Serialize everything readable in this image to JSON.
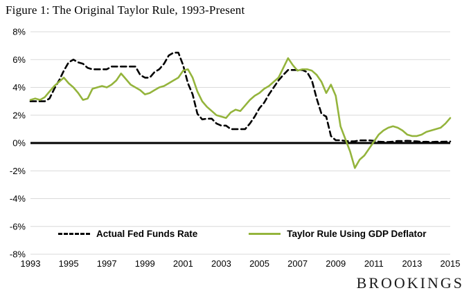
{
  "title": "Figure 1: The Original Taylor Rule, 1993-Present",
  "branding": {
    "logo_text": "BROOKINGS"
  },
  "legend": [
    {
      "label": "Actual Fed Funds Rate",
      "color": "#000000",
      "style": "dashed"
    },
    {
      "label": "Taylor Rule Using GDP Deflator",
      "color": "#94b43c",
      "style": "solid"
    }
  ],
  "chart_data": {
    "type": "line",
    "title": "Figure 1: The Original Taylor Rule, 1993-Present",
    "xlabel": "",
    "ylabel": "",
    "xlim": [
      1993,
      2015
    ],
    "ylim": [
      -8,
      8
    ],
    "grid": "horizontal",
    "zero_line": true,
    "legend_position": "bottom-inside",
    "yticks": [
      8,
      6,
      4,
      2,
      0,
      -2,
      -4,
      -6,
      -8
    ],
    "ytick_labels": [
      "8%",
      "6%",
      "4%",
      "2%",
      "0%",
      "-2%",
      "-4%",
      "-6%",
      "-8%"
    ],
    "xticks": [
      1993,
      1995,
      1997,
      1999,
      2001,
      2003,
      2005,
      2007,
      2009,
      2011,
      2013,
      2015
    ],
    "x": [
      1993.0,
      1993.25,
      1993.5,
      1993.75,
      1994.0,
      1994.25,
      1994.5,
      1994.75,
      1995.0,
      1995.25,
      1995.5,
      1995.75,
      1996.0,
      1996.25,
      1996.5,
      1996.75,
      1997.0,
      1997.25,
      1997.5,
      1997.75,
      1998.0,
      1998.25,
      1998.5,
      1998.75,
      1999.0,
      1999.25,
      1999.5,
      1999.75,
      2000.0,
      2000.25,
      2000.5,
      2000.75,
      2001.0,
      2001.25,
      2001.5,
      2001.75,
      2002.0,
      2002.25,
      2002.5,
      2002.75,
      2003.0,
      2003.25,
      2003.5,
      2003.75,
      2004.0,
      2004.25,
      2004.5,
      2004.75,
      2005.0,
      2005.25,
      2005.5,
      2005.75,
      2006.0,
      2006.25,
      2006.5,
      2006.75,
      2007.0,
      2007.25,
      2007.5,
      2007.75,
      2008.0,
      2008.25,
      2008.5,
      2008.75,
      2009.0,
      2009.25,
      2009.5,
      2009.75,
      2010.0,
      2010.25,
      2010.5,
      2010.75,
      2011.0,
      2011.25,
      2011.5,
      2011.75,
      2012.0,
      2012.25,
      2012.5,
      2012.75,
      2013.0,
      2013.25,
      2013.5,
      2013.75,
      2014.0,
      2014.25,
      2014.5,
      2014.75,
      2015.0
    ],
    "series": [
      {
        "name": "Actual Fed Funds Rate",
        "color": "#000000",
        "dash": true,
        "values": [
          3.0,
          3.0,
          3.0,
          3.0,
          3.2,
          3.9,
          4.5,
          5.2,
          5.8,
          6.0,
          5.8,
          5.7,
          5.4,
          5.3,
          5.3,
          5.3,
          5.3,
          5.5,
          5.5,
          5.5,
          5.5,
          5.5,
          5.5,
          4.9,
          4.7,
          4.7,
          5.1,
          5.3,
          5.7,
          6.3,
          6.5,
          6.5,
          5.6,
          4.3,
          3.5,
          2.1,
          1.7,
          1.75,
          1.75,
          1.4,
          1.25,
          1.25,
          1.0,
          1.0,
          1.0,
          1.0,
          1.4,
          1.9,
          2.5,
          2.9,
          3.5,
          4.0,
          4.5,
          4.9,
          5.25,
          5.25,
          5.25,
          5.25,
          5.1,
          4.5,
          3.2,
          2.1,
          1.9,
          0.5,
          0.2,
          0.2,
          0.15,
          0.12,
          0.13,
          0.19,
          0.19,
          0.19,
          0.16,
          0.1,
          0.08,
          0.07,
          0.1,
          0.15,
          0.14,
          0.16,
          0.14,
          0.12,
          0.08,
          0.09,
          0.07,
          0.09,
          0.09,
          0.1,
          0.11
        ]
      },
      {
        "name": "Taylor Rule Using GDP Deflator",
        "color": "#94b43c",
        "dash": false,
        "values": [
          3.1,
          3.2,
          3.1,
          3.3,
          3.7,
          4.1,
          4.4,
          4.7,
          4.3,
          4.0,
          3.6,
          3.1,
          3.2,
          3.9,
          4.0,
          4.1,
          4.0,
          4.2,
          4.5,
          5.0,
          4.6,
          4.2,
          4.0,
          3.8,
          3.5,
          3.6,
          3.8,
          4.0,
          4.1,
          4.3,
          4.5,
          4.7,
          5.2,
          5.3,
          4.7,
          3.7,
          3.0,
          2.6,
          2.3,
          2.0,
          1.9,
          1.8,
          2.2,
          2.4,
          2.3,
          2.7,
          3.1,
          3.4,
          3.6,
          3.9,
          4.1,
          4.4,
          4.7,
          5.4,
          6.1,
          5.6,
          5.2,
          5.3,
          5.3,
          5.2,
          4.9,
          4.4,
          3.6,
          4.2,
          3.4,
          1.2,
          0.3,
          -0.6,
          -1.8,
          -1.2,
          -0.9,
          -0.4,
          0.1,
          0.6,
          0.9,
          1.1,
          1.2,
          1.1,
          0.9,
          0.6,
          0.5,
          0.5,
          0.6,
          0.8,
          0.9,
          1.0,
          1.1,
          1.4,
          1.8
        ]
      }
    ]
  }
}
